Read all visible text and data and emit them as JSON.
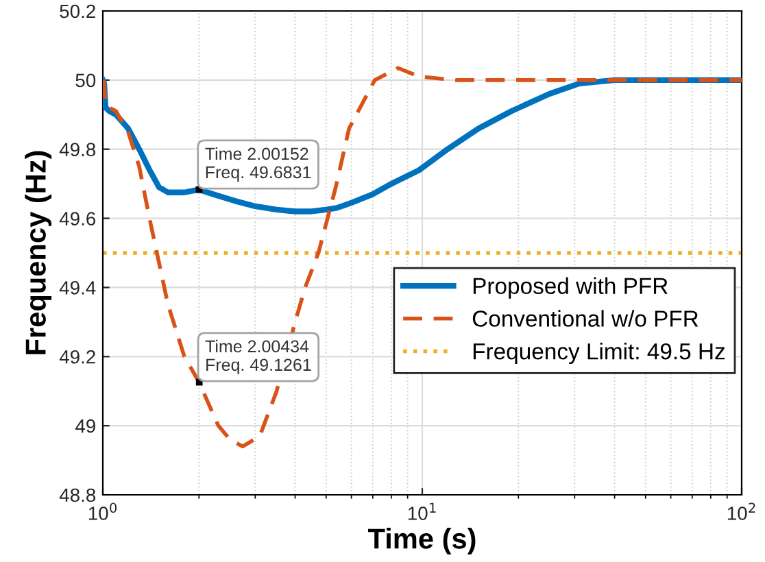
{
  "chart_data": {
    "type": "line",
    "xlabel": "Time (s)",
    "ylabel": "Frequency (Hz)",
    "log": "x",
    "xlim": [
      1,
      100
    ],
    "xticks": [
      {
        "value": 1,
        "label": "10$^{0}$"
      },
      {
        "value": 10,
        "label": "10$^{1}$"
      },
      {
        "value": 100,
        "label": "10$^{2}$"
      }
    ],
    "ylim": [
      48.8,
      50.2
    ],
    "yticks": [
      48.8,
      49,
      49.2,
      49.4,
      49.6,
      49.8,
      50,
      50.2
    ],
    "grid": true,
    "legend": "right",
    "series": [
      {
        "name": "Proposed with PFR",
        "color": "#0072bd",
        "line_style": "solid",
        "x": [
          1,
          1.01,
          1.02,
          1.05,
          1.1,
          1.2,
          1.3,
          1.4,
          1.5,
          1.6,
          1.8,
          2.0,
          2.3,
          2.6,
          3,
          3.5,
          4,
          4.5,
          5,
          5.4,
          6,
          7,
          8,
          9.8,
          12,
          15,
          19,
          25,
          31,
          40,
          60,
          100
        ],
        "values": [
          50,
          49.99,
          49.92,
          49.91,
          49.9,
          49.86,
          49.8,
          49.74,
          49.69,
          49.675,
          49.675,
          49.683,
          49.665,
          49.65,
          49.635,
          49.625,
          49.62,
          49.62,
          49.625,
          49.63,
          49.645,
          49.67,
          49.7,
          49.74,
          49.8,
          49.86,
          49.91,
          49.96,
          49.99,
          50,
          50,
          50
        ]
      },
      {
        "name": "Conventional w/o PFR",
        "color": "#d95319",
        "line_style": "dashed",
        "x": [
          1,
          1.01,
          1.02,
          1.05,
          1.1,
          1.2,
          1.3,
          1.4,
          1.6,
          1.8,
          2.0,
          2.3,
          2.5,
          2.74,
          3.1,
          3.5,
          4,
          4.3,
          4.73,
          5.36,
          5.9,
          7.1,
          8.4,
          9.8,
          12.7,
          15,
          30,
          100
        ],
        "values": [
          50,
          49.99,
          49.93,
          49.92,
          49.91,
          49.85,
          49.75,
          49.6,
          49.35,
          49.2,
          49.126,
          49.0,
          48.96,
          48.94,
          48.97,
          49.1,
          49.3,
          49.4,
          49.5,
          49.69,
          49.86,
          50.0,
          50.035,
          50.01,
          50.0,
          50,
          50,
          50
        ]
      }
    ],
    "ref_lines": [
      {
        "axis": "y",
        "value": 49.5,
        "label": "Frequency Limit: 49.5 Hz",
        "color": "#edb120",
        "line_style": "dotted"
      }
    ],
    "annotations": [
      {
        "text": "Time 2.00152\nFreq. 49.6831",
        "x": 2.00152,
        "y": 49.6831
      },
      {
        "text": "Time 2.00434\nFreq. 49.1261",
        "x": 2.00434,
        "y": 49.1261
      }
    ]
  }
}
